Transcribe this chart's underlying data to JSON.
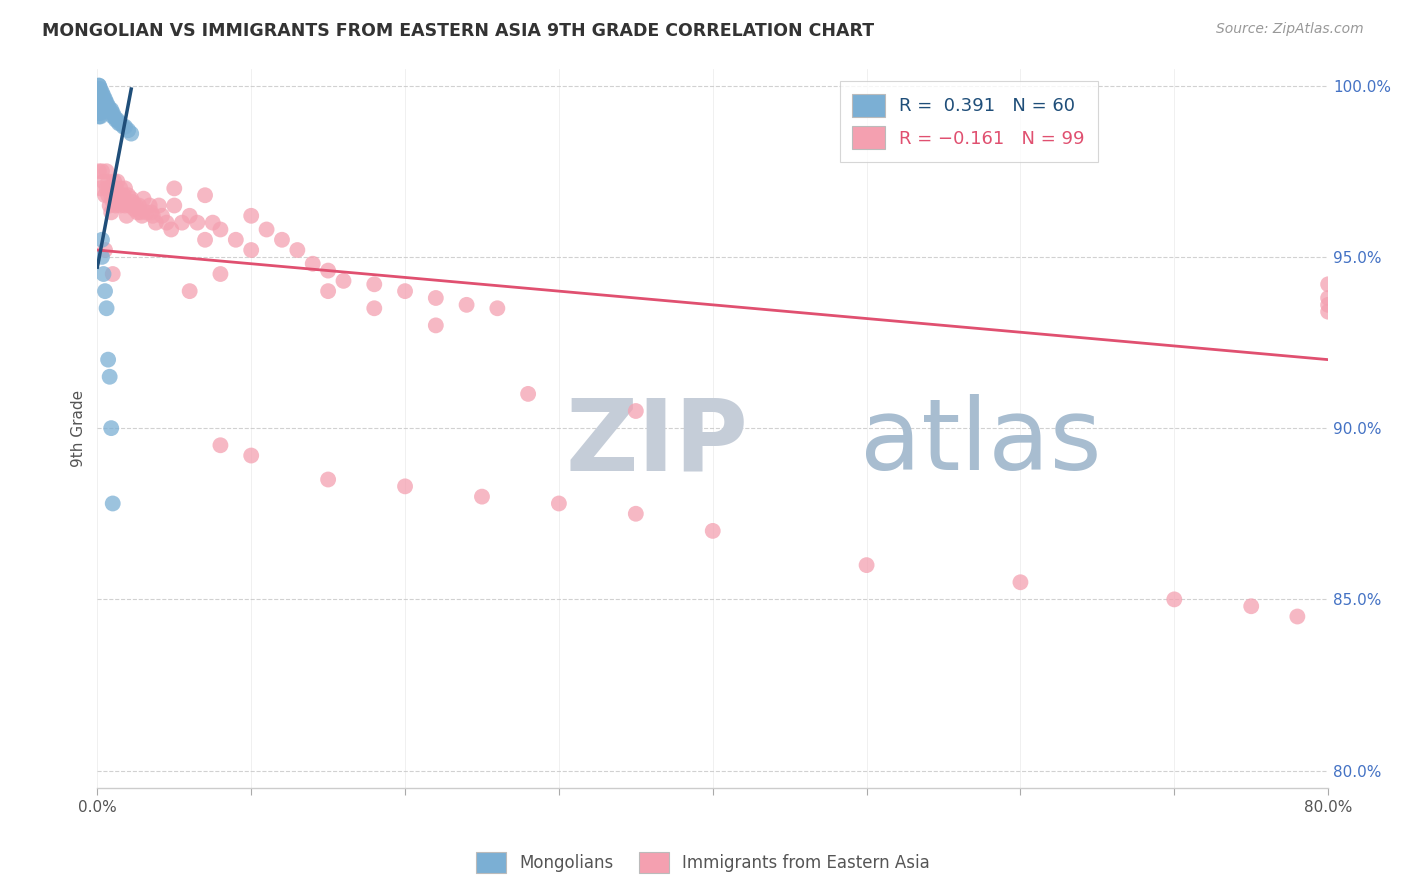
{
  "title": "MONGOLIAN VS IMMIGRANTS FROM EASTERN ASIA 9TH GRADE CORRELATION CHART",
  "source": "Source: ZipAtlas.com",
  "ylabel": "9th Grade",
  "xlim": [
    0.0,
    0.8
  ],
  "ylim": [
    0.795,
    1.005
  ],
  "ytick_positions": [
    0.8,
    0.85,
    0.9,
    0.95,
    1.0
  ],
  "ytick_labels": [
    "80.0%",
    "85.0%",
    "90.0%",
    "95.0%",
    "100.0%"
  ],
  "xtick_positions": [
    0.0,
    0.1,
    0.2,
    0.3,
    0.4,
    0.5,
    0.6,
    0.7,
    0.8
  ],
  "xtick_labels": [
    "0.0%",
    "",
    "",
    "",
    "",
    "",
    "",
    "",
    "80.0%"
  ],
  "blue_color": "#7BAFD4",
  "blue_line_color": "#1F4E79",
  "pink_color": "#F4A0B0",
  "pink_line_color": "#E05070",
  "watermark_zip": "ZIP",
  "watermark_atlas": "atlas",
  "watermark_color_zip": "#C5CDD8",
  "watermark_color_atlas": "#A8BDD0",
  "mongolians_x": [
    0.001,
    0.001,
    0.001,
    0.001,
    0.001,
    0.001,
    0.001,
    0.001,
    0.001,
    0.001,
    0.001,
    0.001,
    0.001,
    0.002,
    0.002,
    0.002,
    0.002,
    0.002,
    0.002,
    0.002,
    0.002,
    0.002,
    0.003,
    0.003,
    0.003,
    0.003,
    0.003,
    0.004,
    0.004,
    0.004,
    0.004,
    0.005,
    0.005,
    0.005,
    0.006,
    0.006,
    0.007,
    0.007,
    0.008,
    0.009,
    0.01,
    0.01,
    0.011,
    0.012,
    0.013,
    0.014,
    0.015,
    0.017,
    0.018,
    0.02,
    0.022,
    0.003,
    0.003,
    0.004,
    0.005,
    0.006,
    0.007,
    0.008,
    0.009,
    0.01
  ],
  "mongolians_y": [
    1.0,
    1.0,
    0.999,
    0.998,
    0.998,
    0.997,
    0.996,
    0.996,
    0.995,
    0.994,
    0.993,
    0.992,
    0.991,
    0.999,
    0.998,
    0.997,
    0.996,
    0.995,
    0.994,
    0.993,
    0.992,
    0.991,
    0.998,
    0.997,
    0.996,
    0.995,
    0.994,
    0.997,
    0.996,
    0.995,
    0.994,
    0.996,
    0.995,
    0.994,
    0.995,
    0.994,
    0.994,
    0.993,
    0.993,
    0.993,
    0.992,
    0.991,
    0.991,
    0.99,
    0.99,
    0.989,
    0.989,
    0.988,
    0.988,
    0.987,
    0.986,
    0.955,
    0.95,
    0.945,
    0.94,
    0.935,
    0.92,
    0.915,
    0.9,
    0.878
  ],
  "immigrants_x": [
    0.001,
    0.001,
    0.002,
    0.003,
    0.004,
    0.005,
    0.006,
    0.006,
    0.007,
    0.007,
    0.008,
    0.008,
    0.009,
    0.009,
    0.01,
    0.01,
    0.011,
    0.011,
    0.012,
    0.012,
    0.013,
    0.013,
    0.014,
    0.015,
    0.015,
    0.016,
    0.017,
    0.018,
    0.018,
    0.019,
    0.02,
    0.021,
    0.022,
    0.023,
    0.024,
    0.025,
    0.026,
    0.027,
    0.028,
    0.029,
    0.03,
    0.032,
    0.034,
    0.035,
    0.036,
    0.038,
    0.04,
    0.042,
    0.045,
    0.048,
    0.05,
    0.055,
    0.06,
    0.065,
    0.07,
    0.075,
    0.08,
    0.09,
    0.1,
    0.11,
    0.12,
    0.13,
    0.14,
    0.15,
    0.16,
    0.18,
    0.2,
    0.22,
    0.24,
    0.26,
    0.05,
    0.06,
    0.07,
    0.08,
    0.1,
    0.15,
    0.18,
    0.22,
    0.28,
    0.35,
    0.08,
    0.1,
    0.15,
    0.2,
    0.25,
    0.3,
    0.35,
    0.4,
    0.5,
    0.6,
    0.7,
    0.75,
    0.78,
    0.8,
    0.8,
    0.8,
    0.8,
    0.01,
    0.005
  ],
  "immigrants_y": [
    0.998,
    0.975,
    0.97,
    0.975,
    0.972,
    0.968,
    0.975,
    0.97,
    0.972,
    0.968,
    0.97,
    0.965,
    0.968,
    0.963,
    0.97,
    0.966,
    0.972,
    0.967,
    0.97,
    0.965,
    0.972,
    0.968,
    0.968,
    0.97,
    0.965,
    0.966,
    0.968,
    0.97,
    0.965,
    0.962,
    0.968,
    0.965,
    0.967,
    0.966,
    0.964,
    0.965,
    0.963,
    0.965,
    0.963,
    0.962,
    0.967,
    0.963,
    0.965,
    0.963,
    0.962,
    0.96,
    0.965,
    0.962,
    0.96,
    0.958,
    0.965,
    0.96,
    0.962,
    0.96,
    0.955,
    0.96,
    0.958,
    0.955,
    0.962,
    0.958,
    0.955,
    0.952,
    0.948,
    0.946,
    0.943,
    0.942,
    0.94,
    0.938,
    0.936,
    0.935,
    0.97,
    0.94,
    0.968,
    0.945,
    0.952,
    0.94,
    0.935,
    0.93,
    0.91,
    0.905,
    0.895,
    0.892,
    0.885,
    0.883,
    0.88,
    0.878,
    0.875,
    0.87,
    0.86,
    0.855,
    0.85,
    0.848,
    0.845,
    0.942,
    0.938,
    0.936,
    0.934,
    0.945,
    0.952
  ],
  "pink_line_x0": 0.0,
  "pink_line_x1": 0.8,
  "pink_line_y0": 0.952,
  "pink_line_y1": 0.92,
  "blue_line_x0": 0.0,
  "blue_line_x1": 0.022,
  "blue_line_y0": 0.947,
  "blue_line_y1": 0.999
}
